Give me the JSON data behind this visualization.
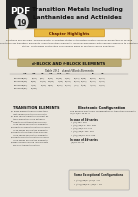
{
  "pdf_label": "PDF",
  "chapter_number": "19",
  "title_line1": "Transition Metals Including",
  "title_line2": "Lanthanides and Actinides",
  "chapter_highlights_title": "Chapter Highlights",
  "highlights_text1": "Electrons are periodic. Semiconductor Properties states of transition metals General properties of second",
  "highlights_text2": "and third row transition elements. Inner transition elements. General discussion with special reference to oxidation",
  "highlights_text3": "states. Lanthanide contraction and various kinds of multiple choice questions.",
  "section_title": "d-BLOCK AND f-BLOCK ELEMENTS",
  "table_title": "Table 19.1   d and f Block Elements",
  "table_col_headers": [
    "IIIB",
    "IVB",
    "VB",
    "VIB",
    "VIIB",
    "VIII",
    "",
    "",
    "IB",
    "IIB"
  ],
  "table_rows": [
    [
      "Sc(21)",
      "Ti(22)",
      "V(23)",
      "Cr(24)",
      "Mn(25)",
      "Fe(26)",
      "Co(27)",
      "Ni(28)",
      "Cu(29)",
      "Zn(30)"
    ],
    [
      "Y(39)",
      "Zr(40)",
      "Nb(41)",
      "Mo(42)",
      "Tc(43)",
      "Ru(44)",
      "Rh(45)",
      "Pd(46)",
      "Ag(47)",
      "Cd(48)"
    ],
    [
      "La(57)",
      "Hf(72)",
      "Ta(73)",
      "W(74)",
      "Re(75)",
      "Os(76)",
      "Ir(77)",
      "Pt(78)",
      "Au(79)",
      "Hg(80)"
    ],
    [
      "Ac(89)",
      "Rf(104)",
      "",
      "",
      "",
      "",
      "",
      "",
      "",
      ""
    ]
  ],
  "row_labels": [
    "3d-series",
    "4d-series",
    "5d-series",
    "6d-series"
  ],
  "transition_title": "TRANSITION ELEMENTS",
  "transition_points": [
    "These elements which have their last valence electron in d-orbital as these elements which have incomplete d (d1-d9) incomplete can called d-block elements.",
    "They called transition element as their properties lie in between the properties of s and p-block elements.",
    "How the first transition d-series is 3d series having ten elements from Sc to Zn.",
    "How the second transition d-series is 4d-series having ten elements from Y to Cd.",
    "How the third transition d-series is 5d series having ten elements from La, Hf to Hg.",
    "How the fourth transition d-series is 6d-series having ten elements from Ac onwards.",
    "Many group IIIB and IIB elements are non-typical transition elements."
  ],
  "elec_config_title": "Electronic Configuration",
  "elec_config_intro": "The general electronic configuration of transition elements is (n-1)d1-10 s1-2",
  "case_3d_title": "In case of 3d-series",
  "case_3d_lines": [
    "[Ar] 3d1, 4s2",
    "[Ar] (3d)1-5, 4s2, 4p0",
    "[Ar] (3d)1-10, 4s1",
    "[Ar] (3d)5, 4s1, 4p0",
    "[Ar] (3d)10, 4s1, 4p0"
  ],
  "case_4d_title": "In case of 4d-series",
  "case_4d_line": "(n)d1-10, s2",
  "inner_box_title": "Some Exceptional Configurations",
  "inner_box_lines": [
    "[Ar] (3d)5, (4s)1 : Cr",
    "[Ar] (3d)10, (4s)1 : Cu"
  ],
  "header_dark_bg": "#222222",
  "header_light_bg": "#c8c8c8",
  "body_bg": "#e8e4dc",
  "highlights_box_bg": "#f5f0e8",
  "highlights_box_border": "#bbaa80",
  "highlights_title_bg": "#e8b840",
  "highlights_title_border": "#c89020",
  "section_banner_bg": "#b8a870",
  "section_banner_border": "#9a8850",
  "table_line_color": "#888888",
  "inner_box_bg": "#e8e0d0",
  "inner_box_border": "#aaaaaa"
}
